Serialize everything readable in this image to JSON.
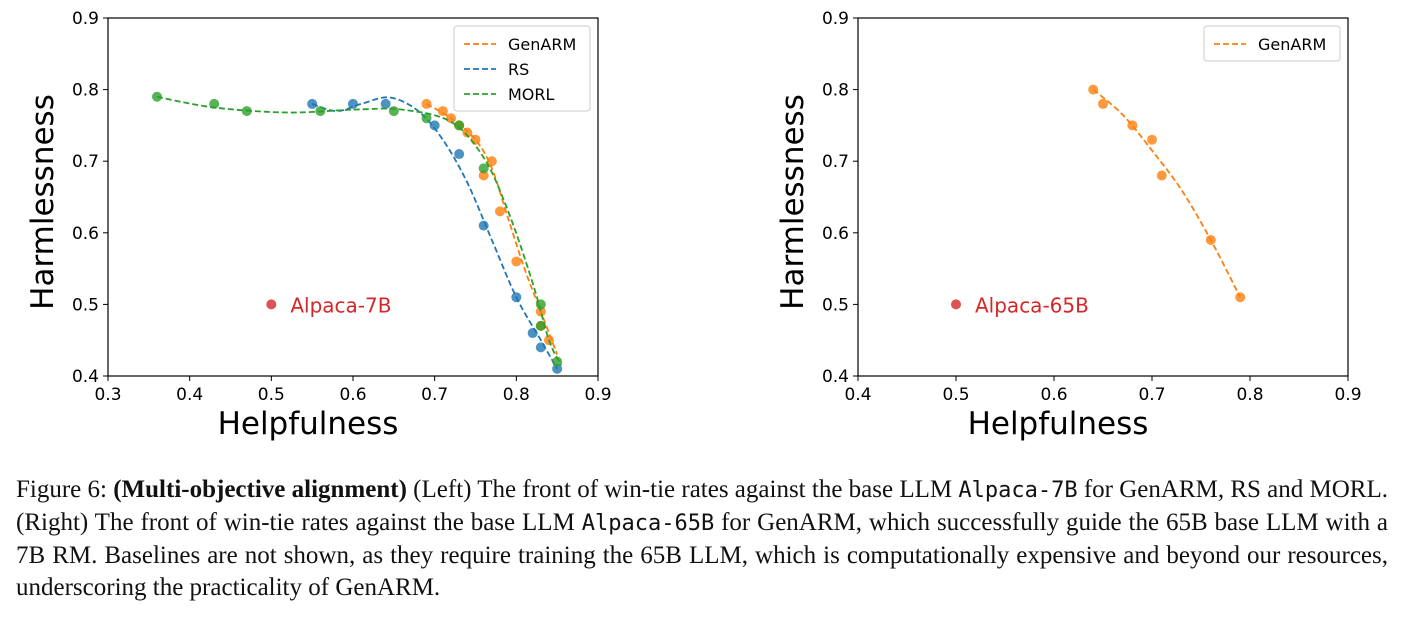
{
  "chart_data": [
    {
      "type": "scatter",
      "xlabel": "Helpfulness",
      "ylabel": "Harmlessness",
      "xlim": [
        0.3,
        0.9
      ],
      "ylim": [
        0.4,
        0.9
      ],
      "xticks": [
        0.3,
        0.4,
        0.5,
        0.6,
        0.7,
        0.8,
        0.9
      ],
      "yticks": [
        0.4,
        0.5,
        0.6,
        0.7,
        0.8,
        0.9
      ],
      "grid": false,
      "legend_position": "top-right",
      "series": [
        {
          "name": "GenARM",
          "color": "#ff7f0e",
          "points": [
            [
              0.69,
              0.78
            ],
            [
              0.71,
              0.77
            ],
            [
              0.72,
              0.76
            ],
            [
              0.73,
              0.75
            ],
            [
              0.74,
              0.74
            ],
            [
              0.75,
              0.73
            ],
            [
              0.77,
              0.7
            ],
            [
              0.76,
              0.68
            ],
            [
              0.78,
              0.63
            ],
            [
              0.8,
              0.56
            ],
            [
              0.83,
              0.49
            ],
            [
              0.84,
              0.45
            ],
            [
              0.83,
              0.47
            ]
          ],
          "curve": [
            [
              0.69,
              0.78
            ],
            [
              0.72,
              0.76
            ],
            [
              0.75,
              0.73
            ],
            [
              0.77,
              0.69
            ],
            [
              0.79,
              0.62
            ],
            [
              0.81,
              0.55
            ],
            [
              0.83,
              0.49
            ],
            [
              0.85,
              0.43
            ]
          ]
        },
        {
          "name": "RS",
          "color": "#1f77b4",
          "points": [
            [
              0.55,
              0.78
            ],
            [
              0.6,
              0.78
            ],
            [
              0.64,
              0.78
            ],
            [
              0.7,
              0.75
            ],
            [
              0.73,
              0.71
            ],
            [
              0.76,
              0.61
            ],
            [
              0.8,
              0.51
            ],
            [
              0.82,
              0.46
            ],
            [
              0.83,
              0.44
            ],
            [
              0.85,
              0.41
            ]
          ],
          "curve": [
            [
              0.55,
              0.78
            ],
            [
              0.58,
              0.77
            ],
            [
              0.61,
              0.78
            ],
            [
              0.645,
              0.789
            ],
            [
              0.68,
              0.77
            ],
            [
              0.71,
              0.73
            ],
            [
              0.74,
              0.67
            ],
            [
              0.77,
              0.59
            ],
            [
              0.8,
              0.51
            ],
            [
              0.83,
              0.45
            ],
            [
              0.85,
              0.41
            ]
          ]
        },
        {
          "name": "MORL",
          "color": "#2ca02c",
          "points": [
            [
              0.36,
              0.79
            ],
            [
              0.43,
              0.78
            ],
            [
              0.47,
              0.77
            ],
            [
              0.56,
              0.77
            ],
            [
              0.65,
              0.77
            ],
            [
              0.69,
              0.76
            ],
            [
              0.73,
              0.75
            ],
            [
              0.76,
              0.69
            ],
            [
              0.83,
              0.5
            ],
            [
              0.83,
              0.47
            ],
            [
              0.85,
              0.42
            ]
          ],
          "curve": [
            [
              0.36,
              0.79
            ],
            [
              0.43,
              0.775
            ],
            [
              0.52,
              0.768
            ],
            [
              0.6,
              0.772
            ],
            [
              0.66,
              0.772
            ],
            [
              0.72,
              0.755
            ],
            [
              0.76,
              0.705
            ],
            [
              0.79,
              0.63
            ],
            [
              0.82,
              0.53
            ],
            [
              0.84,
              0.45
            ],
            [
              0.855,
              0.415
            ]
          ]
        }
      ],
      "annotations": [
        {
          "text": "Alpaca-7B",
          "x": 0.5,
          "y": 0.5,
          "color": "#d62728"
        }
      ]
    },
    {
      "type": "scatter",
      "xlabel": "Helpfulness",
      "ylabel": "Harmlessness",
      "xlim": [
        0.4,
        0.9
      ],
      "ylim": [
        0.4,
        0.9
      ],
      "xticks": [
        0.4,
        0.5,
        0.6,
        0.7,
        0.8,
        0.9
      ],
      "yticks": [
        0.4,
        0.5,
        0.6,
        0.7,
        0.8,
        0.9
      ],
      "grid": false,
      "legend_position": "top-right",
      "series": [
        {
          "name": "GenARM",
          "color": "#ff7f0e",
          "points": [
            [
              0.64,
              0.8
            ],
            [
              0.65,
              0.78
            ],
            [
              0.68,
              0.75
            ],
            [
              0.7,
              0.73
            ],
            [
              0.71,
              0.68
            ],
            [
              0.76,
              0.59
            ],
            [
              0.79,
              0.51
            ]
          ],
          "curve": [
            [
              0.64,
              0.8
            ],
            [
              0.67,
              0.765
            ],
            [
              0.7,
              0.715
            ],
            [
              0.73,
              0.66
            ],
            [
              0.76,
              0.59
            ],
            [
              0.79,
              0.51
            ]
          ]
        }
      ],
      "annotations": [
        {
          "text": "Alpaca-65B",
          "x": 0.5,
          "y": 0.5,
          "color": "#d62728"
        }
      ]
    }
  ],
  "caption": {
    "label": "Figure 6:",
    "bold": "(Multi-objective alignment)",
    "part1": " (Left) The front of win-tie rates against the base LLM ",
    "model1": "Alpaca-7B",
    "part2": " for GenARM, RS and MORL. (Right) The front of win-tie rates against the base LLM ",
    "model2": "Alpaca-65B",
    "part3": " for GenARM, which successfully guide the 65B base LLM with a 7B RM. Baselines are not shown, as they require training the 65B LLM, which is computationally expensive and beyond our resources, underscoring the practicality of GenARM."
  }
}
